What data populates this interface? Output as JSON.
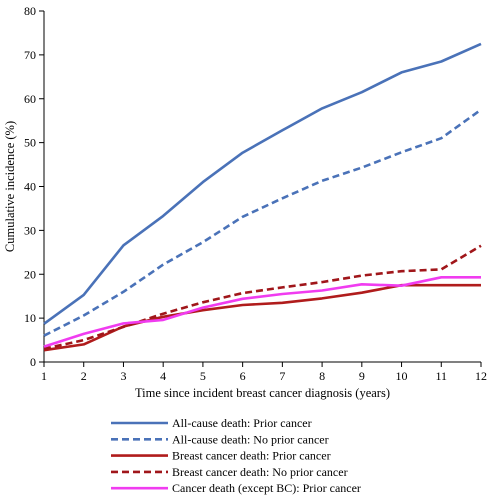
{
  "chart_data": {
    "type": "line",
    "title": "",
    "xlabel": "Time since incident breast cancer diagnosis (years)",
    "ylabel": "Cumulative incidence (%)",
    "xlim": [
      1,
      12
    ],
    "ylim": [
      0,
      80
    ],
    "x_ticks": [
      1,
      2,
      3,
      4,
      5,
      6,
      7,
      8,
      9,
      10,
      11,
      12
    ],
    "y_ticks": [
      0,
      10,
      20,
      30,
      40,
      50,
      60,
      70,
      80
    ],
    "grid": false,
    "legend_position": "bottom",
    "x": [
      1,
      2,
      3,
      4,
      5,
      6,
      7,
      8,
      9,
      10,
      11,
      12
    ],
    "series": [
      {
        "name": "All-cause death: Prior cancer",
        "color": "#4a72b8",
        "dash": "solid",
        "values": [
          8.7,
          15.3,
          26.6,
          33.3,
          41.0,
          47.7,
          52.8,
          57.8,
          61.5,
          66.0,
          68.5,
          72.5
        ]
      },
      {
        "name": "All-cause death: No prior cancer",
        "color": "#4a72b8",
        "dash": "dashed",
        "values": [
          6.0,
          10.6,
          16.0,
          22.2,
          27.3,
          33.1,
          37.3,
          41.3,
          44.3,
          47.8,
          51.0,
          57.5
        ]
      },
      {
        "name": "Breast cancer death: Prior cancer",
        "color": "#b01c1c",
        "dash": "solid",
        "values": [
          2.7,
          4.0,
          8.1,
          10.3,
          11.8,
          13.0,
          13.5,
          14.5,
          15.8,
          17.5,
          17.5,
          17.5
        ]
      },
      {
        "name": "Breast cancer death: No prior cancer",
        "color": "#a0161a",
        "dash": "dashed",
        "values": [
          3.0,
          5.0,
          8.0,
          11.0,
          13.6,
          15.7,
          17.0,
          18.2,
          19.7,
          20.7,
          21.1,
          26.5
        ]
      },
      {
        "name": "Cancer death (except BC): Prior cancer",
        "color": "#f03cf0",
        "dash": "solid",
        "values": [
          3.5,
          6.4,
          8.8,
          9.6,
          12.4,
          14.4,
          15.5,
          16.3,
          17.7,
          17.4,
          19.3,
          19.3
        ]
      }
    ]
  }
}
